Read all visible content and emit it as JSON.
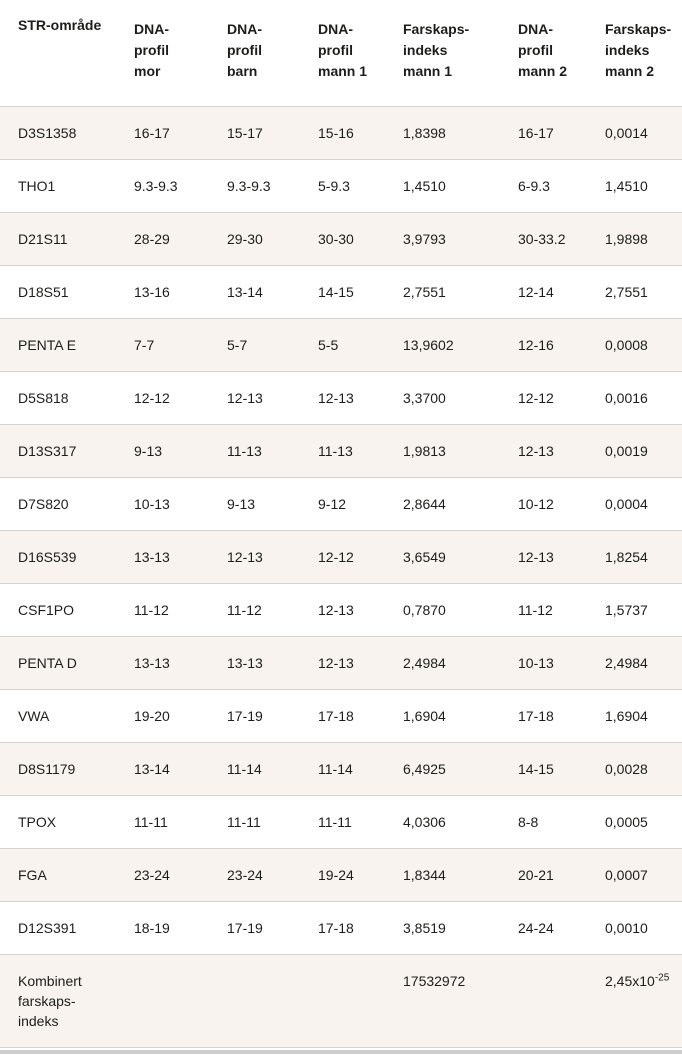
{
  "colors": {
    "stripe_background": "#f8f3ee",
    "divider": "#d6d2ce",
    "text": "#1d1d1b",
    "scrollbar": "#cdcdcd"
  },
  "table": {
    "columns": [
      "STR-område",
      "DNA-\nprofil\nmor",
      "DNA-\nprofil\nbarn",
      "DNA-\nprofil\nmann 1",
      "Farskaps-\nindeks\nmann 1",
      "DNA-\nprofil\nmann 2",
      "Farskaps-\nindeks\nmann 2"
    ],
    "rows": [
      {
        "str": "D3S1358",
        "mor": "16-17",
        "barn": "15-17",
        "mann1": "15-16",
        "fi1": "1,8398",
        "mann2": "16-17",
        "fi2": "0,0014"
      },
      {
        "str": "THO1",
        "mor": "9.3-9.3",
        "barn": "9.3-9.3",
        "mann1": "5-9.3",
        "fi1": "1,4510",
        "mann2": "6-9.3",
        "fi2": "1,4510"
      },
      {
        "str": "D21S11",
        "mor": "28-29",
        "barn": "29-30",
        "mann1": "30-30",
        "fi1": "3,9793",
        "mann2": "30-33.2",
        "fi2": "1,9898"
      },
      {
        "str": "D18S51",
        "mor": "13-16",
        "barn": "13-14",
        "mann1": "14-15",
        "fi1": "2,7551",
        "mann2": "12-14",
        "fi2": "2,7551"
      },
      {
        "str": "PENTA E",
        "mor": "7-7",
        "barn": "5-7",
        "mann1": "5-5",
        "fi1": "13,9602",
        "mann2": "12-16",
        "fi2": "0,0008"
      },
      {
        "str": "D5S818",
        "mor": "12-12",
        "barn": "12-13",
        "mann1": "12-13",
        "fi1": "3,3700",
        "mann2": "12-12",
        "fi2": "0,0016"
      },
      {
        "str": "D13S317",
        "mor": "9-13",
        "barn": "11-13",
        "mann1": "11-13",
        "fi1": "1,9813",
        "mann2": "12-13",
        "fi2": "0,0019"
      },
      {
        "str": "D7S820",
        "mor": "10-13",
        "barn": "9-13",
        "mann1": "9-12",
        "fi1": "2,8644",
        "mann2": "10-12",
        "fi2": "0,0004"
      },
      {
        "str": "D16S539",
        "mor": "13-13",
        "barn": "12-13",
        "mann1": "12-12",
        "fi1": "3,6549",
        "mann2": "12-13",
        "fi2": "1,8254"
      },
      {
        "str": "CSF1PO",
        "mor": "11-12",
        "barn": "11-12",
        "mann1": "12-13",
        "fi1": "0,7870",
        "mann2": "11-12",
        "fi2": "1,5737"
      },
      {
        "str": "PENTA D",
        "mor": "13-13",
        "barn": "13-13",
        "mann1": "12-13",
        "fi1": "2,4984",
        "mann2": "10-13",
        "fi2": "2,4984"
      },
      {
        "str": "VWA",
        "mor": "19-20",
        "barn": "17-19",
        "mann1": "17-18",
        "fi1": "1,6904",
        "mann2": "17-18",
        "fi2": "1,6904"
      },
      {
        "str": "D8S1179",
        "mor": "13-14",
        "barn": "11-14",
        "mann1": "11-14",
        "fi1": "6,4925",
        "mann2": "14-15",
        "fi2": "0,0028"
      },
      {
        "str": "TPOX",
        "mor": "11-11",
        "barn": "11-11",
        "mann1": "11-11",
        "fi1": "4,0306",
        "mann2": "8-8",
        "fi2": "0,0005"
      },
      {
        "str": "FGA",
        "mor": "23-24",
        "barn": "23-24",
        "mann1": "19-24",
        "fi1": "1,8344",
        "mann2": "20-21",
        "fi2": "0,0007"
      },
      {
        "str": "D12S391",
        "mor": "18-19",
        "barn": "17-19",
        "mann1": "17-18",
        "fi1": "3,8519",
        "mann2": "24-24",
        "fi2": "0,0010"
      }
    ],
    "footer": {
      "label": "Kombinert\nfarskaps-\nindeks",
      "fi1": "17532972",
      "fi2_base": "2,45x10",
      "fi2_exp": "-25"
    }
  }
}
